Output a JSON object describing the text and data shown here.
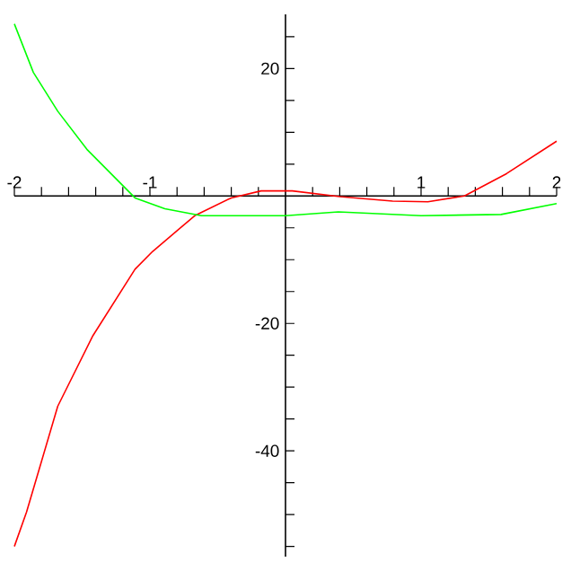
{
  "chart_data": {
    "type": "line",
    "marker": "none",
    "line_style": "solid",
    "xlim": [
      -2,
      2
    ],
    "ylim": [
      -56.6,
      28.5
    ],
    "xticks": [
      {
        "value": -2,
        "label": "-2"
      },
      {
        "value": -1.8,
        "label": null
      },
      {
        "value": -1.6,
        "label": null
      },
      {
        "value": -1.4,
        "label": null
      },
      {
        "value": -1.2,
        "label": null
      },
      {
        "value": -1,
        "label": "-1"
      },
      {
        "value": -0.8,
        "label": null
      },
      {
        "value": -0.6,
        "label": null
      },
      {
        "value": -0.4,
        "label": null
      },
      {
        "value": -0.2,
        "label": null
      },
      {
        "value": 0.2,
        "label": null
      },
      {
        "value": 0.4,
        "label": null
      },
      {
        "value": 0.6,
        "label": null
      },
      {
        "value": 0.8,
        "label": null
      },
      {
        "value": 1,
        "label": "1"
      },
      {
        "value": 1.2,
        "label": null
      },
      {
        "value": 1.4,
        "label": null
      },
      {
        "value": 1.6,
        "label": null
      },
      {
        "value": 1.8,
        "label": null
      },
      {
        "value": 2,
        "label": "2"
      }
    ],
    "yticks": [
      {
        "value": -55,
        "label": null
      },
      {
        "value": -50,
        "label": null
      },
      {
        "value": -45,
        "label": null
      },
      {
        "value": -40,
        "label": "-40"
      },
      {
        "value": -35,
        "label": null
      },
      {
        "value": -30,
        "label": null
      },
      {
        "value": -25,
        "label": null
      },
      {
        "value": -20,
        "label": "-20"
      },
      {
        "value": -15,
        "label": null
      },
      {
        "value": -10,
        "label": null
      },
      {
        "value": -5,
        "label": null
      },
      {
        "value": 5,
        "label": null
      },
      {
        "value": 10,
        "label": null
      },
      {
        "value": 15,
        "label": null
      },
      {
        "value": 20,
        "label": "20"
      },
      {
        "value": 25,
        "label": null
      }
    ],
    "series": [
      {
        "color": "#ff0000",
        "x": [
          -2.0,
          -1.91,
          -1.68,
          -1.42,
          -1.11,
          -0.98,
          -0.67,
          -0.4,
          -0.18,
          0.05,
          0.4,
          0.79,
          1.05,
          1.32,
          1.63,
          2.0
        ],
        "values": [
          -55,
          -49.6,
          -33,
          -21.9,
          -11.5,
          -8.7,
          -3.1,
          -0.3,
          0.8,
          0.8,
          -0.1,
          -0.8,
          -0.9,
          0,
          3.5,
          8.6
        ]
      },
      {
        "color": "#00ff00",
        "x": [
          -2.0,
          -1.86,
          -1.68,
          -1.46,
          -1.11,
          -0.89,
          -0.62,
          0,
          0.39,
          1.0,
          1.59,
          2.0
        ],
        "values": [
          27,
          19.4,
          13.3,
          7.2,
          -0.3,
          -2.0,
          -3.1,
          -3.1,
          -2.5,
          -3.1,
          -2.9,
          -1.2
        ]
      }
    ]
  }
}
